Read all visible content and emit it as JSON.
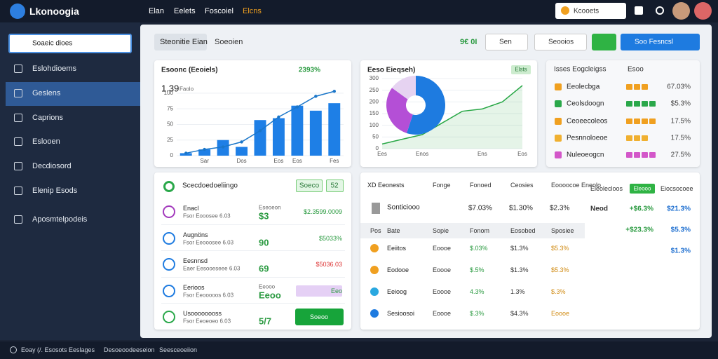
{
  "topbar": {
    "logo": "Lkonoogia",
    "nav": [
      "Elan",
      "Eelets",
      "Foscoiel",
      "Elcns"
    ],
    "search": "Kcooets"
  },
  "sidebar": {
    "search": "Soaeic dioes",
    "items": [
      "Eslohdioems",
      "Geslens",
      "Caprions",
      "Eslooen",
      "Decdiosord",
      "Elenip Esods",
      "Aposmtelpodeis"
    ]
  },
  "toolbar": {
    "tabs": [
      "Steonitie Eian",
      "Soeoien"
    ],
    "amount": "9€ 0Ɩ",
    "buttons": [
      "Sen",
      "Seooios",
      "Soo Fesncsl"
    ]
  },
  "revenue_card": {
    "title": "Esoonc (Eeoiels)",
    "change": "2393%",
    "headline": "1.39",
    "headline_note": "Faolo",
    "chart": {
      "type": "bar",
      "categories": [
        null,
        "Sar",
        null,
        "Dos",
        null,
        "Eos",
        "Eos",
        null,
        "Fes"
      ],
      "values": [
        4,
        10,
        25,
        14,
        57,
        60,
        80,
        72,
        84
      ],
      "color": "#1e7fe6",
      "line_values": [
        4,
        10,
        14,
        22,
        40,
        62,
        78,
        95,
        103
      ],
      "line_color": "#1a76c9",
      "ylim": [
        0,
        110
      ],
      "yticks": [
        0,
        25,
        50,
        75,
        100
      ]
    }
  },
  "mix_card": {
    "title": "Eeso Eieqseh)",
    "badge": "Elsts",
    "donut": {
      "type": "pie",
      "values": [
        55,
        30,
        15
      ],
      "colors": [
        "#1e7be0",
        "#b44fd6",
        "#e6d3f1"
      ]
    },
    "trend": {
      "type": "area",
      "categories": [
        "Ees",
        null,
        "Enos",
        null,
        null,
        "Ens",
        null,
        "Eos"
      ],
      "values": [
        20,
        40,
        60,
        110,
        160,
        170,
        200,
        270
      ],
      "color": "#27a745",
      "ylim": [
        0,
        300
      ],
      "yticks": [
        0,
        50,
        100,
        150,
        200,
        250,
        300
      ]
    }
  },
  "ranking_card": {
    "title": "Isses Eogcleigss",
    "column": "Esoo",
    "rows": [
      {
        "name": "Eeolecbga",
        "rating": 3,
        "color": "#f0a020",
        "value": "67.03%"
      },
      {
        "name": "Ceolsdoogn",
        "rating": 4,
        "color": "#2aa84a",
        "value": "$5.3%"
      },
      {
        "name": "Ceoeecoleos",
        "rating": 4,
        "color": "#f0a020",
        "value": "17.5%"
      },
      {
        "name": "Pesnnoloeoe",
        "rating": 3,
        "color": "#f0b030",
        "value": "17.5%"
      },
      {
        "name": "Nuleoeogcn",
        "rating": 4,
        "color": "#d357c9",
        "value": "27.5%"
      }
    ]
  },
  "list_card": {
    "title": "Scecdoedoeliingo",
    "badge": "Soeco",
    "count": "52",
    "rows": [
      {
        "name": "Enacl",
        "sub": "Fsor Eooosee 6.03",
        "mid_label": "Eseoeon",
        "mid": "$3",
        "right": "$2.3599.0009"
      },
      {
        "name": "Augnöns",
        "sub": "Fsor Eeooosee 6.03",
        "mid_label": "",
        "mid": "90",
        "right": "$5033%"
      },
      {
        "name": "Eesnnsd",
        "sub": "Eaer Eesooeseee 6.03",
        "mid_label": "",
        "mid": "69",
        "right": "$5036.03"
      },
      {
        "name": "Eerioos",
        "sub": "Fsor Eeooooos 6.03",
        "mid_label": "Eeooo",
        "mid": "Eeoo",
        "right": "Eeo"
      },
      {
        "name": "Usoooooooss",
        "sub": "Fsor Eeoeoeo 6.03",
        "mid_label": "",
        "mid": "5/7",
        "right": "Soeoo"
      }
    ]
  },
  "table_card": {
    "title": "XD Eeonests",
    "headers": [
      "Fonge",
      "Fonoed",
      "Ceosies",
      "Eoooocoe Eneolo"
    ],
    "summary": {
      "name": "Sonticiooo",
      "cells": [
        "$7.03%",
        "$1.30%",
        "$2.3%"
      ]
    },
    "subheaders": [
      "Pos",
      "Bate",
      "Sopie",
      "Fonom",
      "Eosobed",
      "Sposiee"
    ],
    "rows": [
      {
        "name": "Eeiitos",
        "cells": [
          "Eoooe",
          "$.03%",
          "$1.3%",
          "$5.3%"
        ]
      },
      {
        "name": "Eodooe",
        "cells": [
          "Eoooe",
          "$.5%",
          "$1.3%",
          "$5.3%"
        ]
      },
      {
        "name": "Eeioog",
        "cells": [
          "Eoooe",
          "4.3%",
          "1.3%",
          "$.3%"
        ]
      },
      {
        "name": "Sesioosoi",
        "cells": [
          "Eoooe",
          "$.3%",
          "$4.3%",
          "Eoooe"
        ]
      }
    ],
    "side": {
      "title": "Eieolecloos",
      "button": "Eleooo",
      "label": "Eiocsocoee",
      "rows": [
        [
          "Neod",
          "+$6.3%",
          "$21.3%"
        ],
        [
          "",
          "+$23.3%",
          "$5.3%"
        ],
        [
          "",
          "",
          "$1.3%"
        ]
      ]
    }
  },
  "statusbar": {
    "items": [
      "Eoay (/. Esosots Eeslages",
      "Desoeoodeeseion",
      "Seesceoeiion"
    ]
  }
}
